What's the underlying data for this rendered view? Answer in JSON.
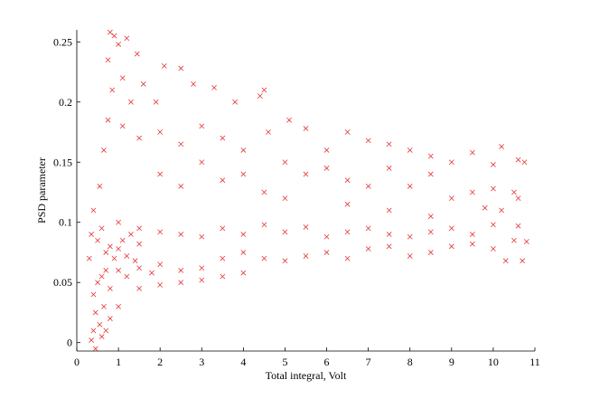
{
  "chart_data": {
    "type": "scatter",
    "title": "",
    "xlabel": "Total integral, Volt",
    "ylabel": "PSD parameter",
    "xlim": [
      0,
      11
    ],
    "ylim": [
      -0.007,
      0.26
    ],
    "xticks": [
      0,
      1,
      2,
      3,
      4,
      5,
      6,
      7,
      8,
      9,
      10,
      11
    ],
    "xtick_labels": [
      "0",
      "1",
      "2",
      "3",
      "4",
      "5",
      "6",
      "7",
      "8",
      "9",
      "10",
      "11"
    ],
    "yticks": [
      0,
      0.05,
      0.1,
      0.15,
      0.2,
      0.25
    ],
    "ytick_labels": [
      "0",
      "0.05",
      "0.1",
      "0.15",
      "0.2",
      "0.25"
    ],
    "grid": false,
    "legend": "none",
    "marker": "x",
    "color": "#e8282a",
    "series": [
      {
        "points": [
          [
            0.35,
            0.002
          ],
          [
            0.4,
            0.01
          ],
          [
            0.45,
            0.025
          ],
          [
            0.4,
            0.04
          ],
          [
            0.5,
            0.05
          ],
          [
            0.6,
            0.055
          ],
          [
            0.7,
            0.06
          ],
          [
            0.45,
            -0.005
          ],
          [
            0.55,
            0.015
          ],
          [
            0.65,
            0.03
          ],
          [
            0.8,
            0.045
          ],
          [
            0.3,
            0.07
          ],
          [
            0.35,
            0.09
          ],
          [
            0.4,
            0.11
          ],
          [
            0.5,
            0.085
          ],
          [
            0.6,
            0.095
          ],
          [
            0.7,
            0.075
          ],
          [
            0.8,
            0.08
          ],
          [
            0.9,
            0.07
          ],
          [
            1.0,
            0.078
          ],
          [
            1.1,
            0.085
          ],
          [
            1.2,
            0.072
          ],
          [
            1.3,
            0.09
          ],
          [
            1.4,
            0.068
          ],
          [
            1.5,
            0.082
          ],
          [
            0.55,
            0.13
          ],
          [
            0.65,
            0.16
          ],
          [
            0.75,
            0.185
          ],
          [
            0.85,
            0.21
          ],
          [
            0.75,
            0.235
          ],
          [
            0.8,
            0.258
          ],
          [
            0.9,
            0.255
          ],
          [
            1.0,
            0.248
          ],
          [
            1.2,
            0.253
          ],
          [
            1.45,
            0.24
          ],
          [
            1.1,
            0.22
          ],
          [
            1.3,
            0.2
          ],
          [
            1.6,
            0.215
          ],
          [
            1.9,
            0.2
          ],
          [
            2.1,
            0.23
          ],
          [
            2.5,
            0.228
          ],
          [
            2.8,
            0.215
          ],
          [
            3.3,
            0.212
          ],
          [
            3.8,
            0.2
          ],
          [
            4.4,
            0.205
          ],
          [
            4.5,
            0.21
          ],
          [
            1.1,
            0.18
          ],
          [
            1.5,
            0.17
          ],
          [
            2.0,
            0.175
          ],
          [
            2.5,
            0.165
          ],
          [
            3.0,
            0.18
          ],
          [
            3.5,
            0.17
          ],
          [
            4.0,
            0.16
          ],
          [
            4.6,
            0.175
          ],
          [
            5.1,
            0.185
          ],
          [
            5.5,
            0.178
          ],
          [
            6.0,
            0.16
          ],
          [
            6.5,
            0.175
          ],
          [
            7.0,
            0.168
          ],
          [
            7.5,
            0.165
          ],
          [
            8.0,
            0.16
          ],
          [
            8.5,
            0.155
          ],
          [
            9.0,
            0.15
          ],
          [
            9.5,
            0.158
          ],
          [
            10.0,
            0.148
          ],
          [
            10.2,
            0.163
          ],
          [
            10.6,
            0.152
          ],
          [
            10.75,
            0.15
          ],
          [
            5.0,
            0.15
          ],
          [
            5.5,
            0.14
          ],
          [
            6.0,
            0.145
          ],
          [
            6.5,
            0.135
          ],
          [
            7.0,
            0.13
          ],
          [
            7.5,
            0.145
          ],
          [
            8.0,
            0.13
          ],
          [
            8.5,
            0.14
          ],
          [
            9.0,
            0.12
          ],
          [
            9.5,
            0.125
          ],
          [
            10.0,
            0.128
          ],
          [
            10.5,
            0.125
          ],
          [
            10.6,
            0.12
          ],
          [
            2.0,
            0.14
          ],
          [
            2.5,
            0.13
          ],
          [
            3.0,
            0.15
          ],
          [
            3.5,
            0.135
          ],
          [
            4.0,
            0.14
          ],
          [
            4.5,
            0.125
          ],
          [
            5.0,
            0.12
          ],
          [
            6.5,
            0.115
          ],
          [
            7.5,
            0.11
          ],
          [
            8.5,
            0.105
          ],
          [
            9.8,
            0.112
          ],
          [
            10.2,
            0.11
          ],
          [
            1.0,
            0.06
          ],
          [
            1.2,
            0.055
          ],
          [
            1.5,
            0.062
          ],
          [
            1.8,
            0.058
          ],
          [
            2.0,
            0.065
          ],
          [
            2.5,
            0.06
          ],
          [
            3.0,
            0.062
          ],
          [
            3.5,
            0.07
          ],
          [
            4.0,
            0.075
          ],
          [
            4.5,
            0.07
          ],
          [
            5.0,
            0.068
          ],
          [
            5.5,
            0.072
          ],
          [
            6.0,
            0.075
          ],
          [
            6.5,
            0.07
          ],
          [
            7.0,
            0.078
          ],
          [
            7.5,
            0.08
          ],
          [
            8.0,
            0.072
          ],
          [
            8.5,
            0.075
          ],
          [
            9.0,
            0.08
          ],
          [
            9.5,
            0.082
          ],
          [
            10.0,
            0.078
          ],
          [
            10.5,
            0.085
          ],
          [
            10.8,
            0.084
          ],
          [
            10.3,
            0.068
          ],
          [
            10.7,
            0.068
          ],
          [
            1.0,
            0.1
          ],
          [
            1.5,
            0.095
          ],
          [
            2.0,
            0.092
          ],
          [
            2.5,
            0.09
          ],
          [
            3.0,
            0.088
          ],
          [
            3.5,
            0.095
          ],
          [
            4.0,
            0.09
          ],
          [
            4.5,
            0.098
          ],
          [
            5.0,
            0.092
          ],
          [
            5.5,
            0.096
          ],
          [
            6.0,
            0.088
          ],
          [
            6.5,
            0.092
          ],
          [
            7.0,
            0.095
          ],
          [
            7.5,
            0.09
          ],
          [
            8.0,
            0.088
          ],
          [
            8.5,
            0.092
          ],
          [
            9.0,
            0.095
          ],
          [
            9.5,
            0.09
          ],
          [
            10.0,
            0.098
          ],
          [
            10.6,
            0.097
          ],
          [
            1.5,
            0.045
          ],
          [
            2.0,
            0.048
          ],
          [
            2.5,
            0.05
          ],
          [
            3.0,
            0.052
          ],
          [
            3.5,
            0.055
          ],
          [
            4.0,
            0.058
          ],
          [
            1.0,
            0.03
          ],
          [
            0.8,
            0.02
          ],
          [
            0.7,
            0.01
          ],
          [
            0.6,
            0.005
          ]
        ]
      }
    ]
  }
}
